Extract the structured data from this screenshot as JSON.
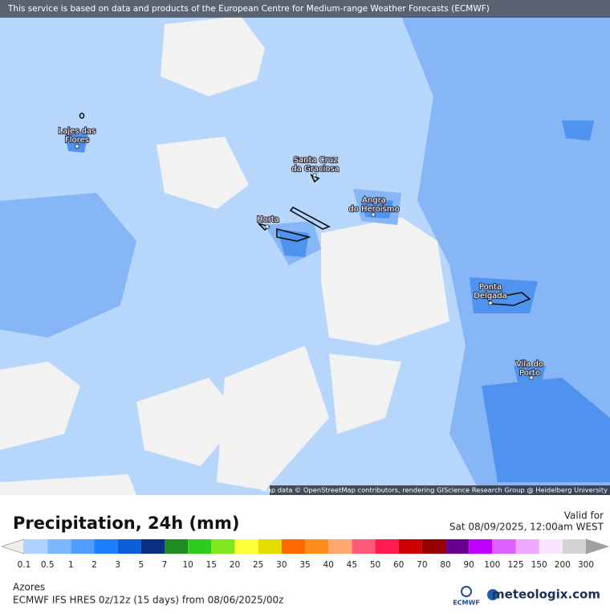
{
  "banner": "This service is based on data and products of the European Centre for Medium-range Weather Forecasts (ECMWF)",
  "places": [
    {
      "line1": "Lajes das",
      "line2": "Flores"
    },
    {
      "line1": "Santa Cruz",
      "line2": "da Graciosa"
    },
    {
      "line1": "Horta"
    },
    {
      "line1": "Angra",
      "line2": "do Heroísmo"
    },
    {
      "line1": "Ponta",
      "line2": "Delgada"
    },
    {
      "line1": "Vila do",
      "line2": "Porto"
    }
  ],
  "attribution": "Map data © OpenStreetMap contributors, rendering GIScience Research Group @ Heidelberg University",
  "legend": {
    "title": "Precipitation, 24h (mm)",
    "valid_label": "Valid for",
    "valid_time": "Sat 08/09/2025, 12:00am WEST",
    "ticks": [
      0.1,
      0.5,
      1,
      2,
      3,
      5,
      7,
      10,
      15,
      20,
      25,
      30,
      35,
      40,
      45,
      50,
      60,
      70,
      80,
      90,
      100,
      125,
      150,
      200,
      300
    ],
    "colors": [
      "#aed3ff",
      "#7db7ff",
      "#4d9cff",
      "#1c7ffb",
      "#0b60d8",
      "#0a2f80",
      "#1f8c22",
      "#2ecb1e",
      "#80e81e",
      "#ffff3a",
      "#e6dd00",
      "#ff6a00",
      "#ff8c1e",
      "#ffa870",
      "#ff5a78",
      "#ff1a50",
      "#cc0000",
      "#960000",
      "#6a0090",
      "#c000ff",
      "#de60ff",
      "#eea8ff",
      "#f8e4ff",
      "#d2d2d2"
    ],
    "under_color": "#eeeeee",
    "over_color": "#a0a0a0"
  },
  "footer": {
    "region": "Azores",
    "model": "ECMWF IFS HRES 0z/12z (15 days) from  08/06/2025/00z",
    "ecmwf": "ECMWF",
    "brand": "meteologix.com"
  }
}
